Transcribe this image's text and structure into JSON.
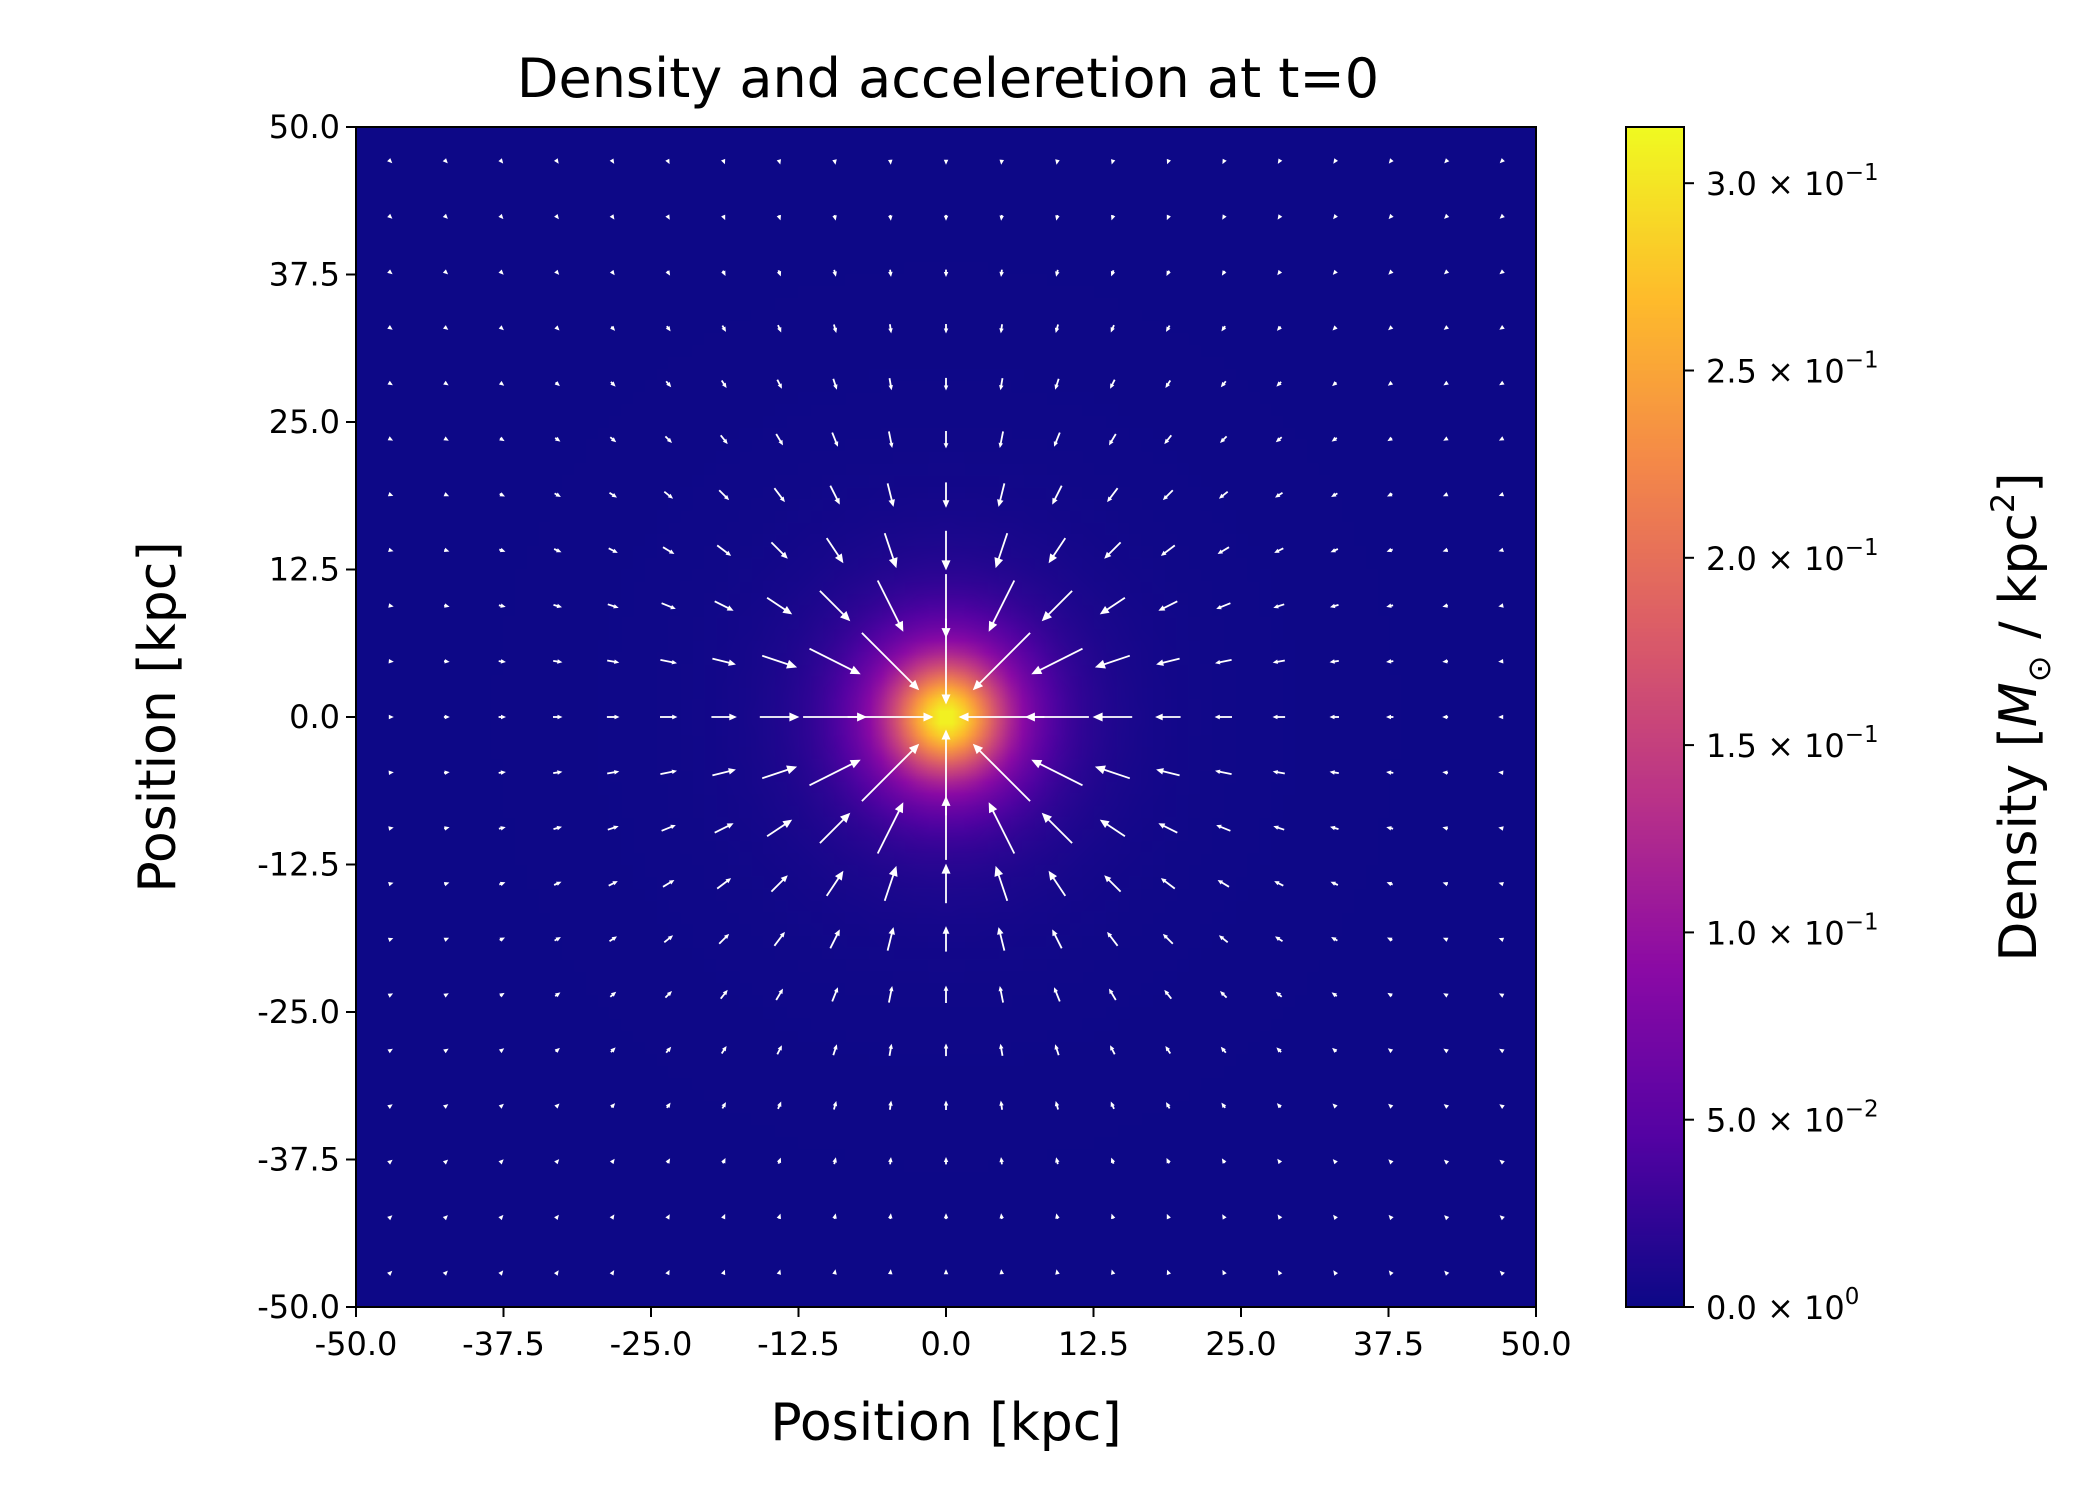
{
  "chart_data": {
    "type": "heatmap",
    "subtype": "density map with acceleration vector field (quiver)",
    "title": "Density and acceleretion at t=0",
    "xlabel": "Position [kpc]",
    "ylabel": "Position [kpc]",
    "xlim": [
      -50.0,
      50.0
    ],
    "ylim": [
      -50.0,
      50.0
    ],
    "x_ticks": [
      "-50.0",
      "-37.5",
      "-25.0",
      "-12.5",
      "0.0",
      "12.5",
      "25.0",
      "37.5",
      "50.0"
    ],
    "y_ticks": [
      "50.0",
      "37.5",
      "25.0",
      "12.5",
      "0.0",
      "-12.5",
      "-25.0",
      "-37.5",
      "-50.0"
    ],
    "x_tick_values": [
      -50.0,
      -37.5,
      -25.0,
      -12.5,
      0.0,
      12.5,
      25.0,
      37.5,
      50.0
    ],
    "y_tick_values": [
      50.0,
      37.5,
      25.0,
      12.5,
      0.0,
      -12.5,
      -25.0,
      -37.5,
      -50.0
    ],
    "density": {
      "profile": "centrally peaked, radially symmetric",
      "center": [
        0.0,
        0.0
      ],
      "peak": 0.315,
      "scale_length_kpc": 7.0,
      "grid_cells": 100
    },
    "colormap": "plasma",
    "colorbar": {
      "label_prefix": "Density [",
      "label_M": "M",
      "label_sun": "⊙",
      "label_mid": " / kpc",
      "label_exp": "2",
      "label_suffix": "]",
      "range": [
        0.0,
        0.315
      ],
      "tick_values": [
        0.0,
        0.05,
        0.1,
        0.15,
        0.2,
        0.25,
        0.3
      ],
      "tick_mantissas": [
        "0.0",
        "5.0",
        "1.0",
        "1.5",
        "2.0",
        "2.5",
        "3.0"
      ],
      "tick_exponents": [
        "0",
        "−2",
        "−1",
        "−1",
        "−1",
        "−1",
        "−1"
      ],
      "times_sign": "×",
      "base": "10"
    },
    "quiver": {
      "direction": "toward center",
      "color": "#ffffff",
      "grid_min": -47.0,
      "grid_max": 47.0,
      "count_per_axis": 21,
      "magnitude_peak_radius_kpc": 7.0
    }
  }
}
